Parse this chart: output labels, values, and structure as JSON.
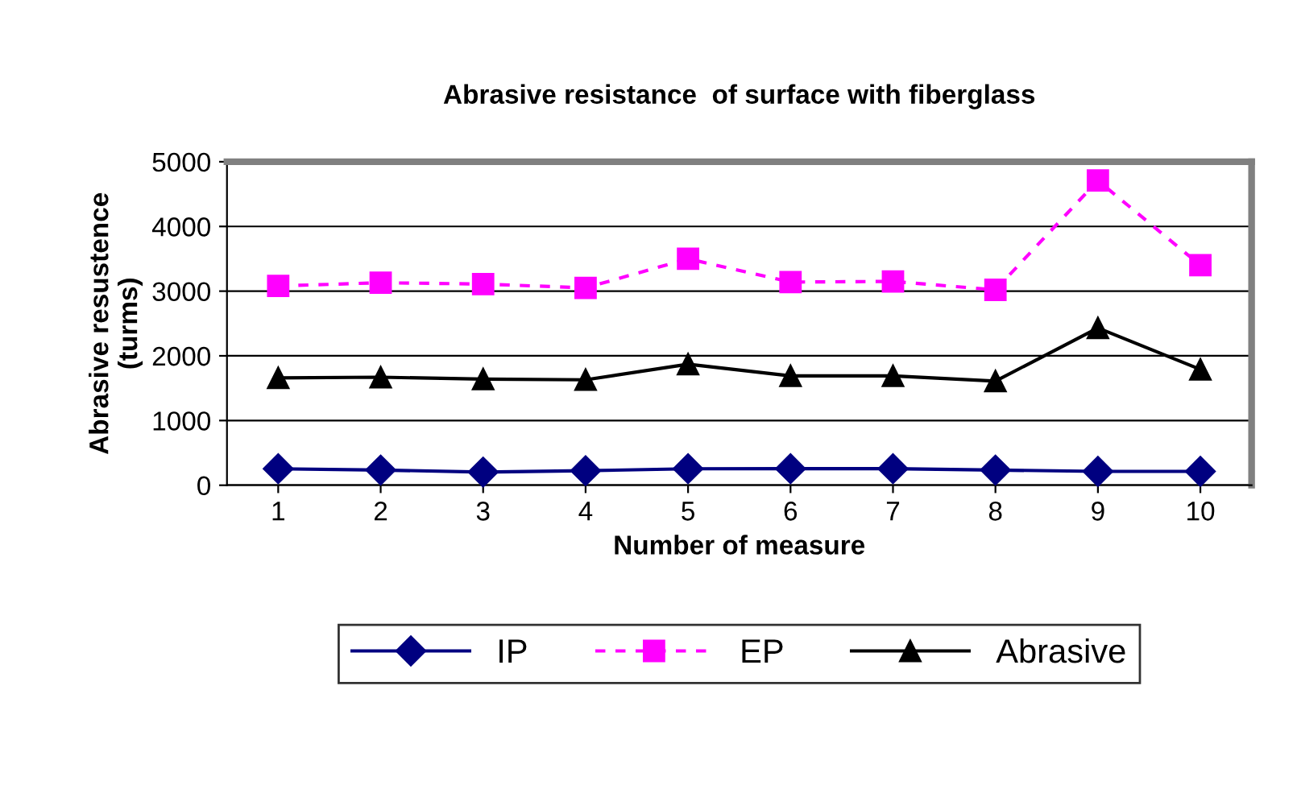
{
  "chart_data": {
    "type": "line",
    "title": "Abrasive resistance  of surface with fiberglass",
    "xlabel": "Number of measure",
    "ylabel": "Abrasive resustence\n(turms)",
    "categories": [
      "1",
      "2",
      "3",
      "4",
      "5",
      "6",
      "7",
      "8",
      "9",
      "10"
    ],
    "series": [
      {
        "name": "IP",
        "color": "#000080",
        "marker": "diamond",
        "line_style": "solid",
        "values": [
          255,
          235,
          204,
          224,
          255,
          255,
          255,
          235,
          214,
          214
        ]
      },
      {
        "name": "EP",
        "color": "#ff00ff",
        "marker": "square",
        "line_style": "dashed",
        "values": [
          3080,
          3130,
          3110,
          3050,
          3500,
          3140,
          3150,
          3020,
          4710,
          3400
        ]
      },
      {
        "name": "Abrasive",
        "color": "#000000",
        "marker": "triangle",
        "line_style": "solid",
        "values": [
          1660,
          1670,
          1640,
          1630,
          1870,
          1690,
          1690,
          1610,
          2430,
          1790
        ]
      }
    ],
    "ylim": [
      0,
      5000
    ],
    "yticks": [
      0,
      1000,
      2000,
      3000,
      4000,
      5000
    ],
    "grid": "y",
    "legend": "bottom"
  }
}
